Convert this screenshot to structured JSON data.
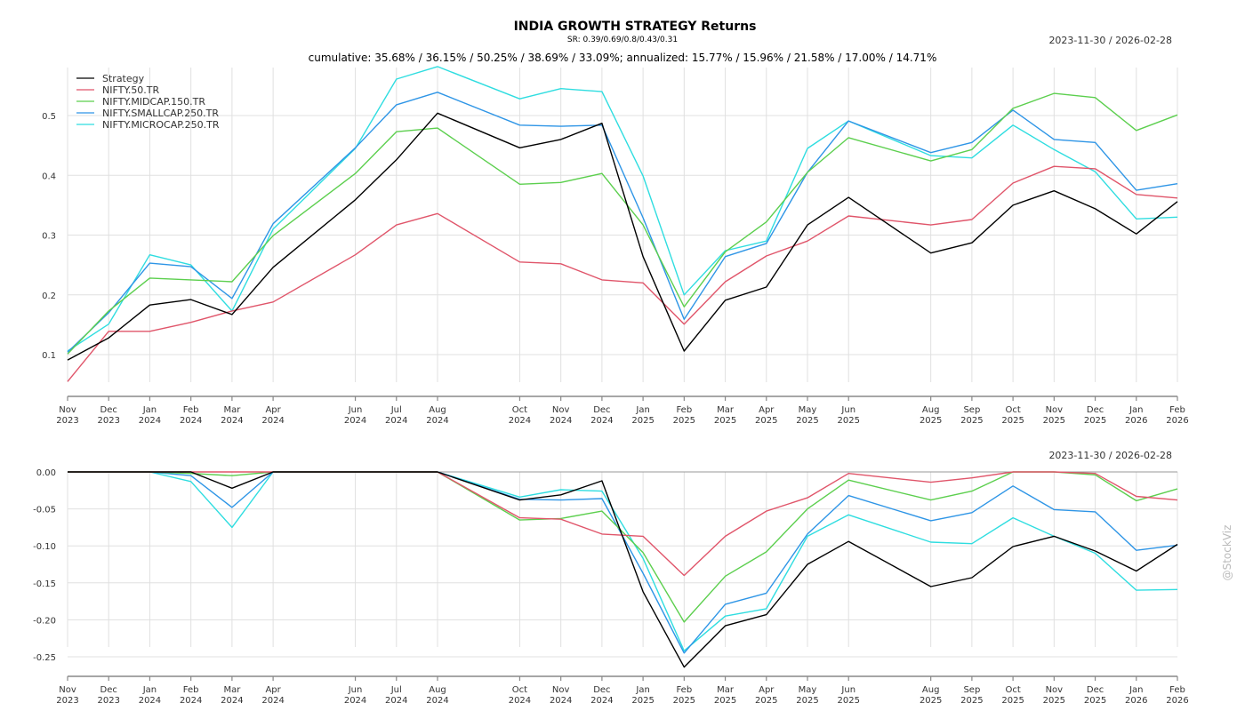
{
  "header": {
    "title": "INDIA GROWTH STRATEGY Returns",
    "subtitle": "SR: 0.39/0.69/0.8/0.43/0.31",
    "stats": "cumulative: 35.68% / 36.15% / 50.25% / 38.69% / 33.09%; annualized: 15.77% / 15.96% / 21.58% / 17.00% / 14.71%",
    "date_range_top": "2023-11-30 / 2026-02-28",
    "date_range_bottom": "2023-11-30 / 2026-02-28"
  },
  "watermark": "@StockViz",
  "chart_data": [
    {
      "type": "line",
      "name": "cumulative-returns",
      "title": "INDIA GROWTH STRATEGY Returns",
      "xlabel": "",
      "ylabel": "",
      "ylim": [
        0.05,
        0.58
      ],
      "yticks": [
        0.1,
        0.2,
        0.3,
        0.4,
        0.5
      ],
      "ytick_labels": [
        "0.1",
        "0.2",
        "0.3",
        "0.4",
        "0.5"
      ],
      "grid": true,
      "legend_position": "top-left",
      "x": [
        "2023-11",
        "2023-12",
        "2024-01",
        "2024-02",
        "2024-03",
        "2024-04",
        "2024-06",
        "2024-07",
        "2024-08",
        "2024-10",
        "2024-11",
        "2024-12",
        "2025-01",
        "2025-02",
        "2025-03",
        "2025-04",
        "2025-05",
        "2025-06",
        "2025-08",
        "2025-09",
        "2025-10",
        "2025-11",
        "2025-12",
        "2026-01",
        "2026-02"
      ],
      "x_tick_labels": [
        [
          "Nov",
          "2023"
        ],
        [
          "Dec",
          "2023"
        ],
        [
          "Jan",
          "2024"
        ],
        [
          "Feb",
          "2024"
        ],
        [
          "Mar",
          "2024"
        ],
        [
          "Apr",
          "2024"
        ],
        [
          "Jun",
          "2024"
        ],
        [
          "Jul",
          "2024"
        ],
        [
          "Aug",
          "2024"
        ],
        [
          "Oct",
          "2024"
        ],
        [
          "Nov",
          "2024"
        ],
        [
          "Dec",
          "2024"
        ],
        [
          "Jan",
          "2025"
        ],
        [
          "Feb",
          "2025"
        ],
        [
          "Mar",
          "2025"
        ],
        [
          "Apr",
          "2025"
        ],
        [
          "May",
          "2025"
        ],
        [
          "Jun",
          "2025"
        ],
        [
          "Aug",
          "2025"
        ],
        [
          "Sep",
          "2025"
        ],
        [
          "Oct",
          "2025"
        ],
        [
          "Nov",
          "2025"
        ],
        [
          "Dec",
          "2025"
        ],
        [
          "Jan",
          "2026"
        ],
        [
          "Feb",
          "2026"
        ]
      ],
      "series": [
        {
          "name": "Strategy",
          "color": "#000000",
          "values": [
            0.091,
            0.128,
            0.183,
            0.192,
            0.167,
            0.246,
            0.359,
            0.426,
            0.504,
            0.446,
            0.46,
            0.487,
            0.264,
            0.106,
            0.191,
            0.213,
            0.317,
            0.363,
            0.27,
            0.287,
            0.35,
            0.374,
            0.344,
            0.302,
            0.356
          ]
        },
        {
          "name": "NIFTY.50.TR",
          "color": "#e0556a",
          "values": [
            0.055,
            0.139,
            0.139,
            0.154,
            0.173,
            0.188,
            0.267,
            0.317,
            0.336,
            0.255,
            0.252,
            0.225,
            0.22,
            0.151,
            0.222,
            0.265,
            0.29,
            0.332,
            0.317,
            0.326,
            0.387,
            0.415,
            0.411,
            0.368,
            0.362
          ]
        },
        {
          "name": "NIFTY.MIDCAP.150.TR",
          "color": "#5ccf4e",
          "values": [
            0.101,
            0.173,
            0.228,
            0.225,
            0.222,
            0.299,
            0.403,
            0.473,
            0.479,
            0.385,
            0.388,
            0.403,
            0.317,
            0.18,
            0.272,
            0.322,
            0.405,
            0.463,
            0.424,
            0.443,
            0.512,
            0.537,
            0.53,
            0.475,
            0.501
          ]
        },
        {
          "name": "NIFTY.SMALLCAP.250.TR",
          "color": "#2e95e6",
          "values": [
            0.104,
            0.17,
            0.253,
            0.247,
            0.194,
            0.319,
            0.446,
            0.518,
            0.539,
            0.484,
            0.482,
            0.484,
            0.329,
            0.159,
            0.264,
            0.286,
            0.405,
            0.491,
            0.438,
            0.455,
            0.509,
            0.46,
            0.455,
            0.375,
            0.386
          ]
        },
        {
          "name": "NIFTY.MICROCAP.250.TR",
          "color": "#2fdde0",
          "values": [
            0.106,
            0.151,
            0.267,
            0.25,
            0.173,
            0.31,
            0.445,
            0.561,
            0.582,
            0.528,
            0.545,
            0.54,
            0.399,
            0.2,
            0.274,
            0.29,
            0.445,
            0.491,
            0.433,
            0.429,
            0.484,
            0.443,
            0.406,
            0.327,
            0.33
          ]
        }
      ]
    },
    {
      "type": "line",
      "name": "drawdowns",
      "title": "",
      "xlabel": "",
      "ylabel": "",
      "ylim": [
        -0.277,
        0.0
      ],
      "yticks": [
        0.0,
        -0.05,
        -0.1,
        -0.15,
        -0.2,
        -0.25
      ],
      "ytick_labels": [
        "0.00",
        "-0.05",
        "-0.10",
        "-0.15",
        "-0.20",
        "-0.25"
      ],
      "grid": true,
      "x": [
        "2023-11",
        "2023-12",
        "2024-01",
        "2024-02",
        "2024-03",
        "2024-04",
        "2024-06",
        "2024-07",
        "2024-08",
        "2024-10",
        "2024-11",
        "2024-12",
        "2025-01",
        "2025-02",
        "2025-03",
        "2025-04",
        "2025-05",
        "2025-06",
        "2025-08",
        "2025-09",
        "2025-10",
        "2025-11",
        "2025-12",
        "2026-01",
        "2026-02"
      ],
      "x_tick_labels": [
        [
          "Nov",
          "2023"
        ],
        [
          "Dec",
          "2023"
        ],
        [
          "Jan",
          "2024"
        ],
        [
          "Feb",
          "2024"
        ],
        [
          "Mar",
          "2024"
        ],
        [
          "Apr",
          "2024"
        ],
        [
          "Jun",
          "2024"
        ],
        [
          "Jul",
          "2024"
        ],
        [
          "Aug",
          "2024"
        ],
        [
          "Oct",
          "2024"
        ],
        [
          "Nov",
          "2024"
        ],
        [
          "Dec",
          "2024"
        ],
        [
          "Jan",
          "2025"
        ],
        [
          "Feb",
          "2025"
        ],
        [
          "Mar",
          "2025"
        ],
        [
          "Apr",
          "2025"
        ],
        [
          "May",
          "2025"
        ],
        [
          "Jun",
          "2025"
        ],
        [
          "Aug",
          "2025"
        ],
        [
          "Sep",
          "2025"
        ],
        [
          "Oct",
          "2025"
        ],
        [
          "Nov",
          "2025"
        ],
        [
          "Dec",
          "2025"
        ],
        [
          "Jan",
          "2026"
        ],
        [
          "Feb",
          "2026"
        ]
      ],
      "series": [
        {
          "name": "Strategy",
          "color": "#000000",
          "values": [
            0,
            0,
            0,
            0,
            -0.022,
            0,
            0,
            0,
            0,
            -0.038,
            -0.031,
            -0.012,
            -0.162,
            -0.264,
            -0.208,
            -0.193,
            -0.125,
            -0.094,
            -0.155,
            -0.143,
            -0.101,
            -0.087,
            -0.107,
            -0.134,
            -0.098
          ]
        },
        {
          "name": "NIFTY.50.TR",
          "color": "#e0556a",
          "values": [
            0,
            0,
            0,
            0,
            0,
            0,
            0,
            0,
            0,
            -0.062,
            -0.064,
            -0.084,
            -0.087,
            -0.14,
            -0.087,
            -0.053,
            -0.035,
            -0.002,
            -0.014,
            -0.008,
            0,
            0,
            -0.002,
            -0.033,
            -0.038
          ]
        },
        {
          "name": "NIFTY.MIDCAP.150.TR",
          "color": "#5ccf4e",
          "values": [
            0,
            0,
            0,
            -0.002,
            -0.005,
            0,
            0,
            0,
            0,
            -0.065,
            -0.063,
            -0.053,
            -0.109,
            -0.203,
            -0.141,
            -0.108,
            -0.05,
            -0.011,
            -0.038,
            -0.026,
            0,
            0,
            -0.004,
            -0.039,
            -0.023
          ]
        },
        {
          "name": "NIFTY.SMALLCAP.250.TR",
          "color": "#2e95e6",
          "values": [
            0,
            0,
            0,
            -0.005,
            -0.048,
            0,
            0,
            0,
            0,
            -0.037,
            -0.038,
            -0.036,
            -0.137,
            -0.245,
            -0.179,
            -0.164,
            -0.084,
            -0.032,
            -0.066,
            -0.055,
            -0.019,
            -0.051,
            -0.054,
            -0.106,
            -0.099
          ]
        },
        {
          "name": "NIFTY.MICROCAP.250.TR",
          "color": "#2fdde0",
          "values": [
            0,
            0,
            0,
            -0.013,
            -0.075,
            0,
            0,
            0,
            0,
            -0.034,
            -0.024,
            -0.026,
            -0.117,
            -0.242,
            -0.195,
            -0.185,
            -0.087,
            -0.058,
            -0.095,
            -0.097,
            -0.062,
            -0.087,
            -0.11,
            -0.16,
            -0.159
          ]
        }
      ]
    }
  ]
}
